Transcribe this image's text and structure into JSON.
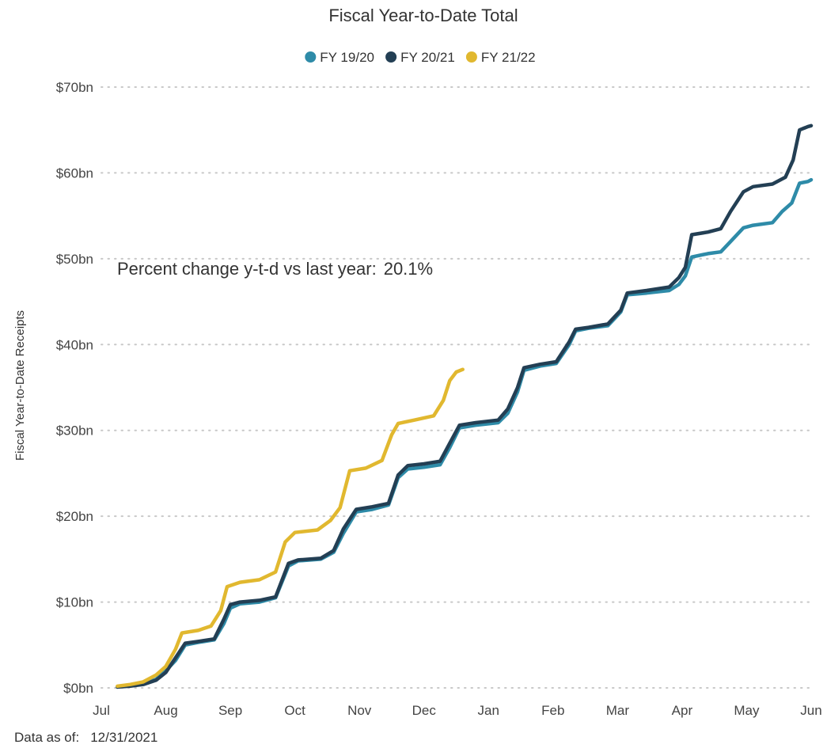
{
  "chart_data": {
    "type": "line",
    "title": "Fiscal Year-to-Date Total",
    "ylabel": "Fiscal Year-to-Date Receipts",
    "xlabel": "",
    "ylim": [
      0,
      70
    ],
    "y_unit": "$bn",
    "yticks": [
      {
        "value": 0,
        "label": "$0bn"
      },
      {
        "value": 10,
        "label": "$10bn"
      },
      {
        "value": 20,
        "label": "$20bn"
      },
      {
        "value": 30,
        "label": "$30bn"
      },
      {
        "value": 40,
        "label": "$40bn"
      },
      {
        "value": 50,
        "label": "$50bn"
      },
      {
        "value": 60,
        "label": "$60bn"
      },
      {
        "value": 70,
        "label": "$70bn"
      }
    ],
    "categories": [
      "Jul",
      "Aug",
      "Sep",
      "Oct",
      "Nov",
      "Dec",
      "Jan",
      "Feb",
      "Mar",
      "Apr",
      "May",
      "Jun"
    ],
    "grid": true,
    "legend_position": "top-center",
    "annotation": {
      "label": "Percent change y-t-d vs last year:",
      "value": "20.1%"
    },
    "series": [
      {
        "name": "FY 19/20",
        "color": "#2e8ba8",
        "points": [
          [
            0.25,
            0.1
          ],
          [
            0.45,
            0.3
          ],
          [
            0.65,
            0.5
          ],
          [
            0.85,
            1.0
          ],
          [
            1.0,
            2.0
          ],
          [
            1.15,
            3.2
          ],
          [
            1.3,
            5.0
          ],
          [
            1.5,
            5.3
          ],
          [
            1.75,
            5.6
          ],
          [
            1.9,
            7.5
          ],
          [
            2.0,
            9.3
          ],
          [
            2.15,
            9.8
          ],
          [
            2.45,
            10.0
          ],
          [
            2.7,
            10.5
          ],
          [
            2.9,
            14.2
          ],
          [
            3.05,
            14.8
          ],
          [
            3.4,
            15.0
          ],
          [
            3.6,
            15.8
          ],
          [
            3.75,
            18.0
          ],
          [
            3.95,
            20.5
          ],
          [
            4.2,
            20.8
          ],
          [
            4.45,
            21.3
          ],
          [
            4.6,
            24.5
          ],
          [
            4.75,
            25.5
          ],
          [
            5.0,
            25.7
          ],
          [
            5.25,
            26.0
          ],
          [
            5.4,
            28.0
          ],
          [
            5.55,
            30.3
          ],
          [
            5.8,
            30.6
          ],
          [
            6.15,
            30.9
          ],
          [
            6.3,
            32.0
          ],
          [
            6.45,
            34.5
          ],
          [
            6.55,
            37.0
          ],
          [
            6.8,
            37.5
          ],
          [
            7.05,
            37.8
          ],
          [
            7.25,
            40.0
          ],
          [
            7.35,
            41.6
          ],
          [
            7.55,
            41.9
          ],
          [
            7.85,
            42.2
          ],
          [
            8.05,
            43.8
          ],
          [
            8.15,
            45.8
          ],
          [
            8.45,
            46.0
          ],
          [
            8.8,
            46.3
          ],
          [
            8.95,
            47.0
          ],
          [
            9.05,
            48.0
          ],
          [
            9.15,
            50.2
          ],
          [
            9.4,
            50.6
          ],
          [
            9.6,
            50.8
          ],
          [
            9.75,
            52.0
          ],
          [
            9.95,
            53.6
          ],
          [
            10.1,
            53.9
          ],
          [
            10.4,
            54.2
          ],
          [
            10.55,
            55.5
          ],
          [
            10.7,
            56.5
          ],
          [
            10.82,
            58.8
          ],
          [
            10.95,
            59.0
          ],
          [
            11.0,
            59.2
          ]
        ]
      },
      {
        "name": "FY 20/21",
        "color": "#233f54",
        "points": [
          [
            0.25,
            0.1
          ],
          [
            0.45,
            0.2
          ],
          [
            0.65,
            0.4
          ],
          [
            0.85,
            0.9
          ],
          [
            1.0,
            1.8
          ],
          [
            1.15,
            3.5
          ],
          [
            1.3,
            5.2
          ],
          [
            1.5,
            5.4
          ],
          [
            1.75,
            5.7
          ],
          [
            1.9,
            8.0
          ],
          [
            2.0,
            9.7
          ],
          [
            2.15,
            10.0
          ],
          [
            2.45,
            10.2
          ],
          [
            2.7,
            10.6
          ],
          [
            2.9,
            14.5
          ],
          [
            3.05,
            14.9
          ],
          [
            3.4,
            15.1
          ],
          [
            3.6,
            16.0
          ],
          [
            3.75,
            18.5
          ],
          [
            3.95,
            20.8
          ],
          [
            4.2,
            21.1
          ],
          [
            4.45,
            21.5
          ],
          [
            4.6,
            24.8
          ],
          [
            4.75,
            25.9
          ],
          [
            5.0,
            26.1
          ],
          [
            5.25,
            26.4
          ],
          [
            5.4,
            28.5
          ],
          [
            5.55,
            30.6
          ],
          [
            5.8,
            30.9
          ],
          [
            6.15,
            31.2
          ],
          [
            6.3,
            32.5
          ],
          [
            6.45,
            35.0
          ],
          [
            6.55,
            37.3
          ],
          [
            6.8,
            37.7
          ],
          [
            7.05,
            38.0
          ],
          [
            7.25,
            40.3
          ],
          [
            7.35,
            41.8
          ],
          [
            7.55,
            42.0
          ],
          [
            7.85,
            42.4
          ],
          [
            8.05,
            44.0
          ],
          [
            8.15,
            46.0
          ],
          [
            8.45,
            46.3
          ],
          [
            8.8,
            46.7
          ],
          [
            8.95,
            47.8
          ],
          [
            9.05,
            49.0
          ],
          [
            9.15,
            52.8
          ],
          [
            9.4,
            53.1
          ],
          [
            9.6,
            53.5
          ],
          [
            9.75,
            55.5
          ],
          [
            9.95,
            57.8
          ],
          [
            10.1,
            58.4
          ],
          [
            10.4,
            58.7
          ],
          [
            10.6,
            59.5
          ],
          [
            10.72,
            61.5
          ],
          [
            10.82,
            65.0
          ],
          [
            10.95,
            65.4
          ],
          [
            11.0,
            65.5
          ]
        ]
      },
      {
        "name": "FY 21/22",
        "color": "#e1b82f",
        "points": [
          [
            0.25,
            0.2
          ],
          [
            0.45,
            0.4
          ],
          [
            0.65,
            0.7
          ],
          [
            0.85,
            1.5
          ],
          [
            1.0,
            2.5
          ],
          [
            1.15,
            4.5
          ],
          [
            1.25,
            6.4
          ],
          [
            1.5,
            6.7
          ],
          [
            1.7,
            7.2
          ],
          [
            1.85,
            9.0
          ],
          [
            1.95,
            11.8
          ],
          [
            2.15,
            12.3
          ],
          [
            2.45,
            12.6
          ],
          [
            2.7,
            13.5
          ],
          [
            2.85,
            17.0
          ],
          [
            3.0,
            18.1
          ],
          [
            3.35,
            18.4
          ],
          [
            3.55,
            19.5
          ],
          [
            3.7,
            21.0
          ],
          [
            3.85,
            25.3
          ],
          [
            4.1,
            25.6
          ],
          [
            4.35,
            26.5
          ],
          [
            4.5,
            29.5
          ],
          [
            4.6,
            30.8
          ],
          [
            4.85,
            31.2
          ],
          [
            5.15,
            31.7
          ],
          [
            5.3,
            33.5
          ],
          [
            5.4,
            35.8
          ],
          [
            5.5,
            36.8
          ],
          [
            5.6,
            37.1
          ]
        ]
      }
    ]
  },
  "footer": {
    "label": "Data as of:",
    "value": "12/31/2021"
  }
}
